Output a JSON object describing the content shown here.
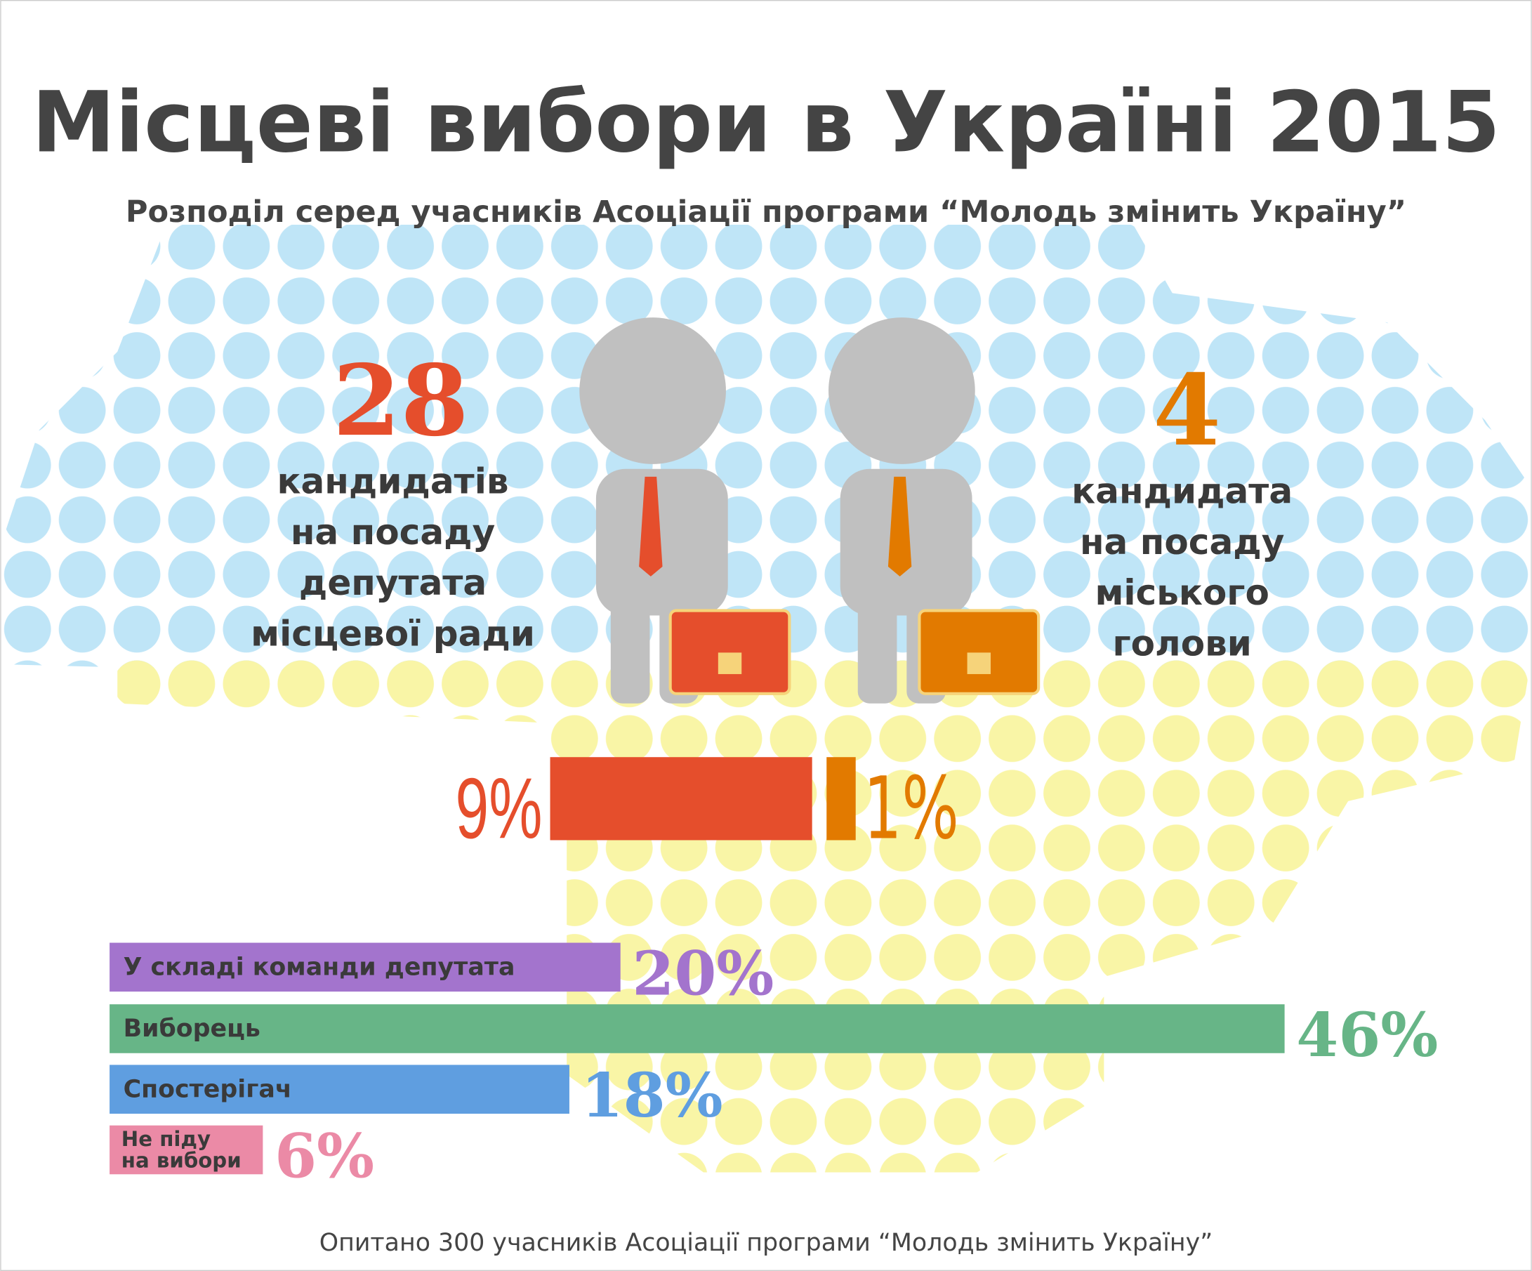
{
  "header": {
    "title": "Місцеві вибори в Україні 2015",
    "subtitle": "Розподіл серед учасників Асоціації програми “Молодь змінить Україну”"
  },
  "candidates": [
    {
      "count": 28,
      "color": "#e54e2c",
      "text": [
        "кандидатів",
        "на посаду",
        "депутата",
        "місцевої ради"
      ]
    },
    {
      "count": 4,
      "color": "#e27a00",
      "text": [
        "кандидата",
        "на посаду",
        "міського",
        "голови"
      ]
    }
  ],
  "share": {
    "values": [
      9,
      1
    ],
    "value_labels": [
      "9%",
      "1%"
    ],
    "colors": [
      "#e54e2c",
      "#e27a00"
    ]
  },
  "roles": {
    "categories": [
      "У складі команди депутата",
      "Виборець",
      "Спостерігач",
      "Не піду на вибори"
    ],
    "values": [
      20,
      46,
      18,
      6
    ],
    "value_labels": [
      "20%",
      "46%",
      "18%",
      "6%"
    ],
    "colors": [
      "#a374cd",
      "#67b587",
      "#5f9ee0",
      "#eb8aa6"
    ]
  },
  "footnote": "Опитано 300 учасників Асоціації програми “Молодь змінить Україну”"
}
